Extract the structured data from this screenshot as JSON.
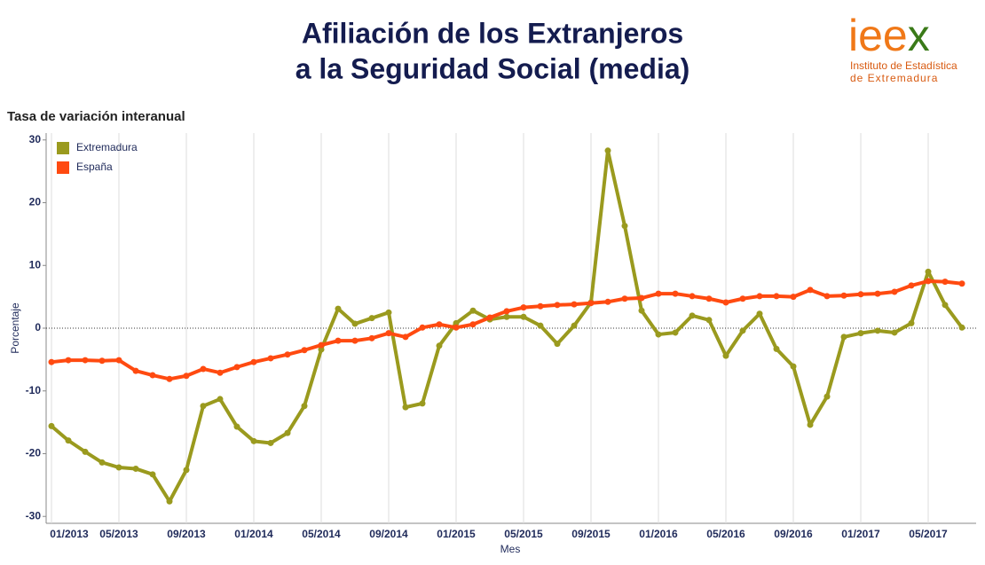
{
  "chart_data": {
    "type": "line",
    "title": [
      "Afiliación de los Extranjeros",
      "a la Seguridad Social (media)"
    ],
    "logo": {
      "mark": "ieex",
      "line1": "Instituto de Estadística",
      "line2": "de Extremadura"
    },
    "subtitle": "Tasa de variación interanual",
    "x_label": "Mes",
    "y_label": "Porcentaje",
    "categories": [
      "01/2013",
      null,
      null,
      null,
      "05/2013",
      null,
      null,
      null,
      "09/2013",
      null,
      null,
      null,
      "01/2014",
      null,
      null,
      null,
      "05/2014",
      null,
      null,
      null,
      "09/2014",
      null,
      null,
      null,
      "01/2015",
      null,
      null,
      null,
      "05/2015",
      null,
      null,
      null,
      "09/2015",
      null,
      null,
      null,
      "01/2016",
      null,
      null,
      null,
      "05/2016",
      null,
      null,
      null,
      "09/2016",
      null,
      null,
      null,
      "01/2017",
      null,
      null,
      null,
      "05/2017",
      null,
      null
    ],
    "series": [
      {
        "name": "Extremadura",
        "color": "#9a9a1e",
        "values": [
          -15.6,
          -17.9,
          -19.7,
          -21.4,
          -22.2,
          -22.4,
          -23.3,
          -27.6,
          -22.6,
          -12.4,
          -11.3,
          -15.7,
          -18.0,
          -18.3,
          -16.7,
          -12.4,
          -3.4,
          3.1,
          0.7,
          1.6,
          2.5,
          -12.6,
          -12.0,
          -2.8,
          0.8,
          2.8,
          1.4,
          1.8,
          1.8,
          0.4,
          -2.5,
          0.4,
          4.1,
          28.3,
          16.3,
          2.8,
          -1.0,
          -0.7,
          2.0,
          1.3,
          -4.4,
          -0.4,
          2.3,
          -3.3,
          -6.1,
          -15.4,
          -10.9,
          -1.4,
          -0.8,
          -0.4,
          -0.7,
          0.8,
          9.0,
          3.7,
          0.1
        ]
      },
      {
        "name": "España",
        "color": "#ff4a10",
        "values": [
          -5.4,
          -5.1,
          -5.1,
          -5.2,
          -5.1,
          -6.8,
          -7.5,
          -8.1,
          -7.6,
          -6.5,
          -7.1,
          -6.2,
          -5.4,
          -4.8,
          -4.2,
          -3.5,
          -2.7,
          -2.0,
          -2.0,
          -1.6,
          -0.8,
          -1.4,
          0.1,
          0.6,
          0.1,
          0.6,
          1.7,
          2.7,
          3.3,
          3.5,
          3.7,
          3.8,
          4.0,
          4.2,
          4.7,
          4.8,
          5.5,
          5.5,
          5.1,
          4.7,
          4.1,
          4.7,
          5.1,
          5.1,
          5.0,
          6.1,
          5.1,
          5.2,
          5.4,
          5.5,
          5.8,
          6.8,
          7.5,
          7.4,
          7.1
        ]
      }
    ],
    "ylim": [
      -31.1,
      31.1
    ],
    "yticks": [
      -30,
      -20,
      -10,
      0,
      10,
      20,
      30
    ],
    "grid": "x",
    "zero_line": true,
    "legend": "top-left"
  }
}
